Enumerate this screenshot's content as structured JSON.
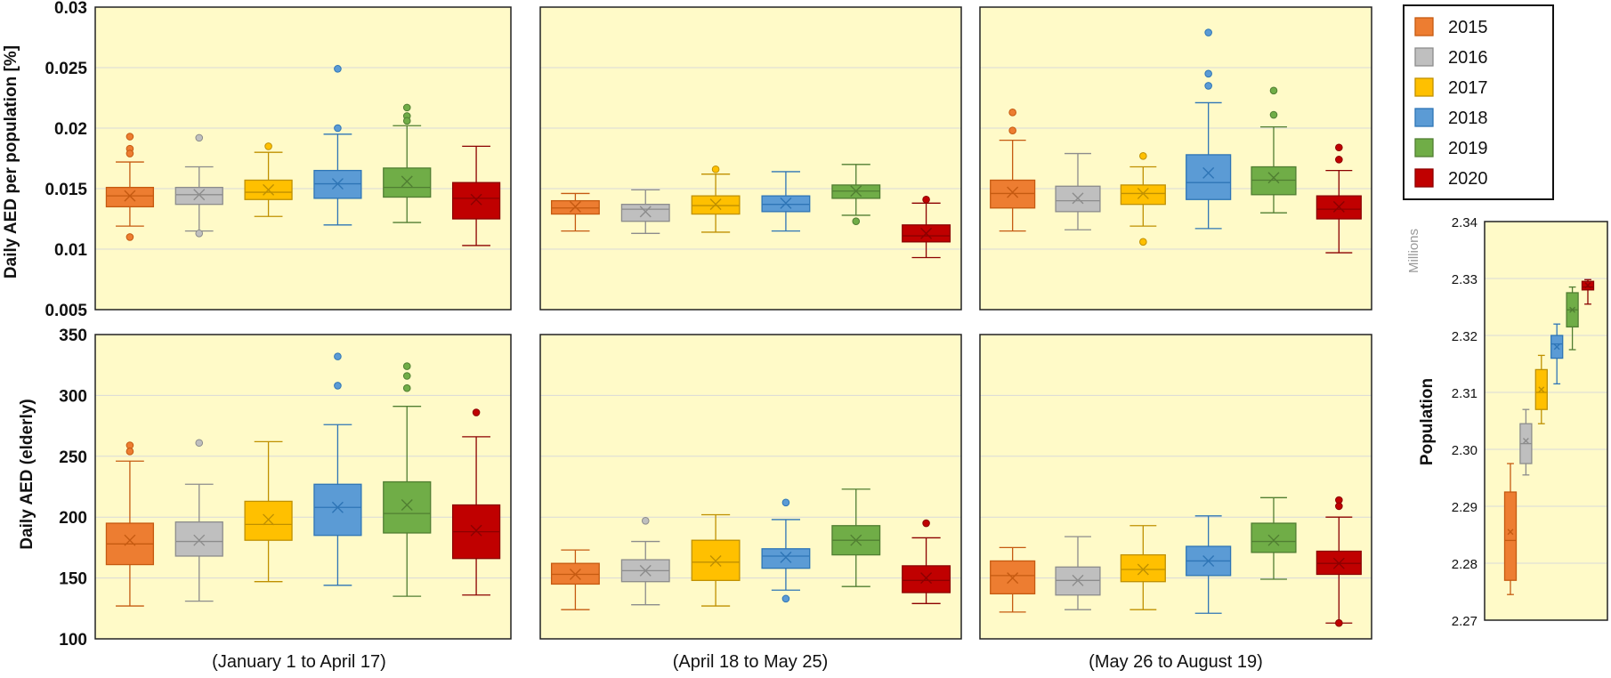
{
  "colors": {
    "panel_bg": "#FFFAC8",
    "grid": "#D9D9D9",
    "years": {
      "2015": {
        "fill": "#ED7D31",
        "stroke": "#C55A11"
      },
      "2016": {
        "fill": "#BFBFBF",
        "stroke": "#8C8C8C"
      },
      "2017": {
        "fill": "#FFC000",
        "stroke": "#BF9000"
      },
      "2018": {
        "fill": "#5B9BD5",
        "stroke": "#2E75B6"
      },
      "2019": {
        "fill": "#70AD47",
        "stroke": "#507E32"
      },
      "2020": {
        "fill": "#C00000",
        "stroke": "#8B0000"
      }
    }
  },
  "legend": {
    "items": [
      "2015",
      "2016",
      "2017",
      "2018",
      "2019",
      "2020"
    ]
  },
  "periods": [
    "(January 1 to April 17)",
    "(April 18 to May 25)",
    "(May 26 to August 19)"
  ],
  "chart_data": [
    {
      "type": "box",
      "id": "top",
      "ylabel": "Daily AED per population [%]",
      "ylim": [
        0.005,
        0.03
      ],
      "yticks": [
        "0.005",
        "0.01",
        "0.015",
        "0.02",
        "0.025",
        "0.03"
      ],
      "ytick_values": [
        0.005,
        0.01,
        0.015,
        0.02,
        0.025,
        0.03
      ],
      "panels": [
        {
          "period": "(January 1 to April 17)",
          "boxes": [
            {
              "year": "2015",
              "min": 0.0119,
              "q1": 0.0135,
              "median": 0.0144,
              "q3": 0.0151,
              "max": 0.0172,
              "mean": 0.0144,
              "outliers": [
                0.0183,
                0.0179,
                0.0193,
                0.011
              ]
            },
            {
              "year": "2016",
              "min": 0.0115,
              "q1": 0.0137,
              "median": 0.0145,
              "q3": 0.0151,
              "max": 0.0168,
              "mean": 0.0145,
              "outliers": [
                0.0192,
                0.0113
              ]
            },
            {
              "year": "2017",
              "min": 0.0127,
              "q1": 0.0141,
              "median": 0.0147,
              "q3": 0.0157,
              "max": 0.018,
              "mean": 0.0149,
              "outliers": [
                0.0185
              ]
            },
            {
              "year": "2018",
              "min": 0.012,
              "q1": 0.0142,
              "median": 0.0154,
              "q3": 0.0165,
              "max": 0.0195,
              "mean": 0.0154,
              "outliers": [
                0.0249,
                0.02
              ]
            },
            {
              "year": "2019",
              "min": 0.0122,
              "q1": 0.0143,
              "median": 0.0151,
              "q3": 0.0167,
              "max": 0.0202,
              "mean": 0.0156,
              "outliers": [
                0.0217,
                0.021,
                0.0206
              ]
            },
            {
              "year": "2020",
              "min": 0.0103,
              "q1": 0.0125,
              "median": 0.0142,
              "q3": 0.0155,
              "max": 0.0185,
              "mean": 0.0141,
              "outliers": []
            }
          ]
        },
        {
          "period": "(April 18 to May 25)",
          "boxes": [
            {
              "year": "2015",
              "min": 0.0115,
              "q1": 0.0129,
              "median": 0.0134,
              "q3": 0.014,
              "max": 0.0146,
              "mean": 0.0135,
              "outliers": []
            },
            {
              "year": "2016",
              "min": 0.0113,
              "q1": 0.0123,
              "median": 0.0133,
              "q3": 0.0137,
              "max": 0.0149,
              "mean": 0.0131,
              "outliers": []
            },
            {
              "year": "2017",
              "min": 0.0114,
              "q1": 0.0129,
              "median": 0.0136,
              "q3": 0.0144,
              "max": 0.0162,
              "mean": 0.0137,
              "outliers": [
                0.0166
              ]
            },
            {
              "year": "2018",
              "min": 0.0115,
              "q1": 0.0131,
              "median": 0.0137,
              "q3": 0.0144,
              "max": 0.0164,
              "mean": 0.0138,
              "outliers": []
            },
            {
              "year": "2019",
              "min": 0.0128,
              "q1": 0.0142,
              "median": 0.0148,
              "q3": 0.0153,
              "max": 0.017,
              "mean": 0.0148,
              "outliers": [
                0.0123
              ]
            },
            {
              "year": "2020",
              "min": 0.0093,
              "q1": 0.0106,
              "median": 0.0111,
              "q3": 0.012,
              "max": 0.0138,
              "mean": 0.0113,
              "outliers": [
                0.0141
              ]
            }
          ]
        },
        {
          "period": "(May 26 to August 19)",
          "boxes": [
            {
              "year": "2015",
              "min": 0.0115,
              "q1": 0.0134,
              "median": 0.0146,
              "q3": 0.0157,
              "max": 0.019,
              "mean": 0.0147,
              "outliers": [
                0.0213,
                0.0198
              ]
            },
            {
              "year": "2016",
              "min": 0.0116,
              "q1": 0.0131,
              "median": 0.014,
              "q3": 0.0152,
              "max": 0.0179,
              "mean": 0.0142,
              "outliers": []
            },
            {
              "year": "2017",
              "min": 0.0119,
              "q1": 0.0137,
              "median": 0.0146,
              "q3": 0.0153,
              "max": 0.0168,
              "mean": 0.0146,
              "outliers": [
                0.0177,
                0.0106
              ]
            },
            {
              "year": "2018",
              "min": 0.0117,
              "q1": 0.0141,
              "median": 0.0155,
              "q3": 0.0178,
              "max": 0.0221,
              "mean": 0.0163,
              "outliers": [
                0.0279,
                0.0245,
                0.0235
              ]
            },
            {
              "year": "2019",
              "min": 0.013,
              "q1": 0.0145,
              "median": 0.0157,
              "q3": 0.0168,
              "max": 0.0201,
              "mean": 0.0159,
              "outliers": [
                0.0231,
                0.0211
              ]
            },
            {
              "year": "2020",
              "min": 0.0097,
              "q1": 0.0125,
              "median": 0.0133,
              "q3": 0.0144,
              "max": 0.0165,
              "mean": 0.0135,
              "outliers": [
                0.0184,
                0.0174
              ]
            }
          ]
        }
      ]
    },
    {
      "type": "box",
      "id": "bottom",
      "ylabel": "Daily AED (elderly)",
      "ylim": [
        100,
        350
      ],
      "yticks": [
        "100",
        "150",
        "200",
        "250",
        "300",
        "350"
      ],
      "ytick_values": [
        100,
        150,
        200,
        250,
        300,
        350
      ],
      "panels": [
        {
          "period": "(January 1 to April 17)",
          "boxes": [
            {
              "year": "2015",
              "min": 127,
              "q1": 161,
              "median": 178,
              "q3": 195,
              "max": 246,
              "mean": 181,
              "outliers": [
                259,
                254
              ]
            },
            {
              "year": "2016",
              "min": 131,
              "q1": 168,
              "median": 180,
              "q3": 196,
              "max": 227,
              "mean": 181,
              "outliers": [
                261
              ]
            },
            {
              "year": "2017",
              "min": 147,
              "q1": 181,
              "median": 194,
              "q3": 213,
              "max": 262,
              "mean": 198,
              "outliers": []
            },
            {
              "year": "2018",
              "min": 144,
              "q1": 185,
              "median": 208,
              "q3": 227,
              "max": 276,
              "mean": 208,
              "outliers": [
                332,
                308
              ]
            },
            {
              "year": "2019",
              "min": 135,
              "q1": 187,
              "median": 203,
              "q3": 229,
              "max": 291,
              "mean": 210,
              "outliers": [
                324,
                316,
                306
              ]
            },
            {
              "year": "2020",
              "min": 136,
              "q1": 166,
              "median": 188,
              "q3": 210,
              "max": 266,
              "mean": 189,
              "outliers": [
                286
              ]
            }
          ]
        },
        {
          "period": "(April 18 to May 25)",
          "boxes": [
            {
              "year": "2015",
              "min": 124,
              "q1": 145,
              "median": 153,
              "q3": 162,
              "max": 173,
              "mean": 153,
              "outliers": []
            },
            {
              "year": "2016",
              "min": 128,
              "q1": 147,
              "median": 156,
              "q3": 165,
              "max": 180,
              "mean": 156,
              "outliers": [
                197
              ]
            },
            {
              "year": "2017",
              "min": 127,
              "q1": 148,
              "median": 163,
              "q3": 181,
              "max": 202,
              "mean": 164,
              "outliers": []
            },
            {
              "year": "2018",
              "min": 140,
              "q1": 158,
              "median": 168,
              "q3": 174,
              "max": 198,
              "mean": 167,
              "outliers": [
                212,
                133
              ]
            },
            {
              "year": "2019",
              "min": 143,
              "q1": 169,
              "median": 181,
              "q3": 193,
              "max": 223,
              "mean": 181,
              "outliers": []
            },
            {
              "year": "2020",
              "min": 129,
              "q1": 138,
              "median": 148,
              "q3": 160,
              "max": 183,
              "mean": 150,
              "outliers": [
                195
              ]
            }
          ]
        },
        {
          "period": "(May 26 to August 19)",
          "boxes": [
            {
              "year": "2015",
              "min": 122,
              "q1": 137,
              "median": 152,
              "q3": 164,
              "max": 175,
              "mean": 150,
              "outliers": []
            },
            {
              "year": "2016",
              "min": 124,
              "q1": 136,
              "median": 148,
              "q3": 159,
              "max": 184,
              "mean": 148,
              "outliers": []
            },
            {
              "year": "2017",
              "min": 124,
              "q1": 147,
              "median": 157,
              "q3": 169,
              "max": 193,
              "mean": 157,
              "outliers": []
            },
            {
              "year": "2018",
              "min": 121,
              "q1": 152,
              "median": 164,
              "q3": 176,
              "max": 201,
              "mean": 164,
              "outliers": []
            },
            {
              "year": "2019",
              "min": 149,
              "q1": 171,
              "median": 180,
              "q3": 195,
              "max": 216,
              "mean": 181,
              "outliers": []
            },
            {
              "year": "2020",
              "min": 113,
              "q1": 153,
              "median": 162,
              "q3": 172,
              "max": 200,
              "mean": 162,
              "outliers": [
                214,
                209,
                113
              ]
            }
          ]
        }
      ]
    },
    {
      "type": "box",
      "id": "population",
      "ylabel": "Population",
      "units_label": "Millions",
      "ylim": [
        2.27,
        2.34
      ],
      "yticks": [
        "2.27",
        "2.28",
        "2.29",
        "2.30",
        "2.31",
        "2.32",
        "2.33",
        "2.34"
      ],
      "ytick_values": [
        2.27,
        2.28,
        2.29,
        2.3,
        2.31,
        2.32,
        2.33,
        2.34
      ],
      "boxes": [
        {
          "year": "2015",
          "min": 2.2745,
          "q1": 2.277,
          "median": 2.284,
          "q3": 2.2925,
          "max": 2.2975,
          "mean": 2.2855,
          "outliers": []
        },
        {
          "year": "2016",
          "min": 2.2955,
          "q1": 2.2975,
          "median": 2.301,
          "q3": 2.3045,
          "max": 2.307,
          "mean": 2.3015,
          "outliers": []
        },
        {
          "year": "2017",
          "min": 2.3045,
          "q1": 2.307,
          "median": 2.31,
          "q3": 2.314,
          "max": 2.3165,
          "mean": 2.3105,
          "outliers": []
        },
        {
          "year": "2018",
          "min": 2.3115,
          "q1": 2.316,
          "median": 2.3185,
          "q3": 2.32,
          "max": 2.322,
          "mean": 2.318,
          "outliers": []
        },
        {
          "year": "2019",
          "min": 2.3175,
          "q1": 2.3215,
          "median": 2.3245,
          "q3": 2.3275,
          "max": 2.3285,
          "mean": 2.3245,
          "outliers": []
        },
        {
          "year": "2020",
          "min": 2.3255,
          "q1": 2.328,
          "median": 2.3285,
          "q3": 2.3295,
          "max": 2.3298,
          "mean": 2.3288,
          "outliers": []
        }
      ]
    }
  ]
}
